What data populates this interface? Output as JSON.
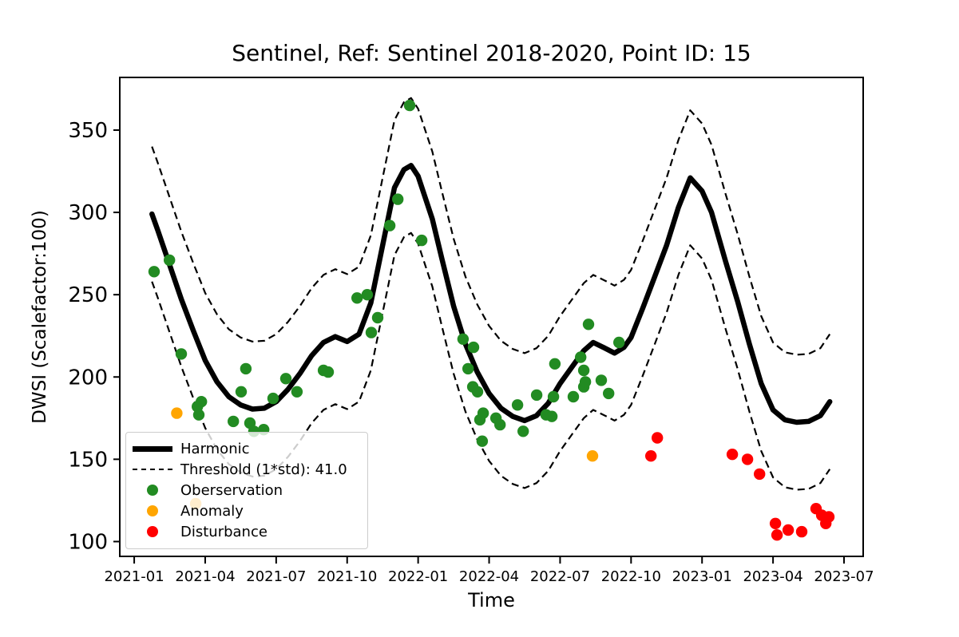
{
  "title": "Sentinel, Ref: Sentinel 2018-2020, Point ID: 15",
  "axes": {
    "xlabel": "Time",
    "ylabel": "DWSI (Scalefactor:100)",
    "x_tick_labels": [
      "2021-01",
      "2021-04",
      "2021-07",
      "2021-10",
      "2022-01",
      "2022-04",
      "2022-07",
      "2022-10",
      "2023-01",
      "2023-04",
      "2023-07"
    ],
    "y_tick_labels": [
      "100",
      "150",
      "200",
      "250",
      "300",
      "350"
    ]
  },
  "legend": {
    "items": [
      {
        "label": "Harmonic",
        "marker": "thick-line"
      },
      {
        "label": "Threshold (1*std): 41.0",
        "marker": "dashed-line"
      },
      {
        "label": "Oberservation",
        "marker": "green-dot"
      },
      {
        "label": "Anomaly",
        "marker": "orange-dot"
      },
      {
        "label": "Disturbance",
        "marker": "red-dot"
      }
    ]
  },
  "colors": {
    "harmonic": "#000000",
    "threshold": "#000000",
    "observation": "#228B22",
    "anomaly": "#FFA500",
    "disturbance": "#FF0000",
    "frame": "#000000",
    "legend_border": "#cccccc"
  },
  "chart_data": {
    "type": "line+scatter",
    "title": "Sentinel, Ref: Sentinel 2018-2020, Point ID: 15",
    "xlabel": "Time",
    "ylabel": "DWSI (Scalefactor:100)",
    "x_unit": "months_since_2021-01",
    "x_ticks_t": [
      0,
      3,
      6,
      9,
      12,
      15,
      18,
      21,
      24,
      27,
      30
    ],
    "x_tick_labels": [
      "2021-01",
      "2021-04",
      "2021-07",
      "2021-10",
      "2022-01",
      "2022-04",
      "2022-07",
      "2022-10",
      "2023-01",
      "2023-04",
      "2023-07"
    ],
    "y_ticks": [
      100,
      150,
      200,
      250,
      300,
      350
    ],
    "xlim_t": [
      -0.61,
      30.81
    ],
    "ylim": [
      91,
      382
    ],
    "grid": false,
    "legend_position": "lower-left",
    "threshold_std_label": 41.0,
    "harmonic": {
      "name": "Harmonic",
      "points": [
        [
          0.75,
          299
        ],
        [
          1,
          289
        ],
        [
          1.5,
          268
        ],
        [
          2,
          247
        ],
        [
          2.5,
          228
        ],
        [
          3,
          210
        ],
        [
          3.5,
          197
        ],
        [
          4,
          188
        ],
        [
          4.5,
          183
        ],
        [
          5,
          180.5
        ],
        [
          5.5,
          181
        ],
        [
          6,
          185
        ],
        [
          6.5,
          192.5
        ],
        [
          7,
          202
        ],
        [
          7.5,
          213
        ],
        [
          8,
          221
        ],
        [
          8.5,
          224.5
        ],
        [
          9,
          221.5
        ],
        [
          9.5,
          226
        ],
        [
          10,
          245
        ],
        [
          10.5,
          280
        ],
        [
          11,
          315
        ],
        [
          11.4,
          326
        ],
        [
          11.7,
          328.5
        ],
        [
          12,
          322
        ],
        [
          12.3,
          309
        ],
        [
          12.6,
          296
        ],
        [
          13,
          272
        ],
        [
          13.5,
          243
        ],
        [
          14,
          220
        ],
        [
          14.5,
          203
        ],
        [
          15,
          190
        ],
        [
          15.5,
          181
        ],
        [
          16,
          176
        ],
        [
          16.5,
          173.5
        ],
        [
          17,
          176.5
        ],
        [
          17.5,
          184
        ],
        [
          18,
          196
        ],
        [
          18.5,
          206
        ],
        [
          19,
          216
        ],
        [
          19.4,
          221
        ],
        [
          19.9,
          217.5
        ],
        [
          20.3,
          214.5
        ],
        [
          20.7,
          218
        ],
        [
          21,
          224
        ],
        [
          21.5,
          242
        ],
        [
          22,
          261
        ],
        [
          22.5,
          280
        ],
        [
          23,
          303
        ],
        [
          23.5,
          321
        ],
        [
          24,
          313
        ],
        [
          24.4,
          300
        ],
        [
          25,
          270
        ],
        [
          25.5,
          246
        ],
        [
          26,
          220
        ],
        [
          26.5,
          196
        ],
        [
          27,
          180
        ],
        [
          27.5,
          174
        ],
        [
          28,
          172.5
        ],
        [
          28.5,
          173
        ],
        [
          29,
          176.5
        ],
        [
          29.4,
          185
        ]
      ]
    },
    "threshold_offset": 41,
    "series": [
      {
        "name": "Oberservation",
        "color": "#228B22",
        "points": [
          [
            0.84,
            264
          ],
          [
            1.49,
            271
          ],
          [
            1.99,
            214
          ],
          [
            2.67,
            182
          ],
          [
            2.73,
            177
          ],
          [
            2.84,
            185
          ],
          [
            4.19,
            173
          ],
          [
            4.52,
            191
          ],
          [
            4.72,
            205
          ],
          [
            4.89,
            172
          ],
          [
            5.06,
            167
          ],
          [
            5.47,
            168
          ],
          [
            5.87,
            187
          ],
          [
            6.41,
            199
          ],
          [
            6.88,
            191
          ],
          [
            8.0,
            204
          ],
          [
            8.2,
            203
          ],
          [
            9.42,
            248
          ],
          [
            9.85,
            250
          ],
          [
            10.02,
            227
          ],
          [
            10.29,
            236
          ],
          [
            10.8,
            292
          ],
          [
            11.14,
            308
          ],
          [
            11.64,
            365
          ],
          [
            12.15,
            283
          ],
          [
            13.9,
            223
          ],
          [
            14.11,
            205
          ],
          [
            14.31,
            194
          ],
          [
            14.34,
            218
          ],
          [
            14.51,
            191
          ],
          [
            14.61,
            174
          ],
          [
            14.71,
            161
          ],
          [
            14.75,
            178
          ],
          [
            15.29,
            175
          ],
          [
            15.46,
            171
          ],
          [
            16.2,
            183
          ],
          [
            16.44,
            167
          ],
          [
            17.01,
            189
          ],
          [
            17.41,
            177
          ],
          [
            17.65,
            176
          ],
          [
            17.72,
            188
          ],
          [
            17.78,
            208
          ],
          [
            18.56,
            188
          ],
          [
            18.87,
            212
          ],
          [
            19.0,
            204
          ],
          [
            19.0,
            194
          ],
          [
            19.07,
            197
          ],
          [
            19.2,
            232
          ],
          [
            19.74,
            198
          ],
          [
            20.05,
            190
          ],
          [
            20.49,
            221
          ]
        ]
      },
      {
        "name": "Anomaly",
        "color": "#FFA500",
        "points": [
          [
            1.8,
            178
          ],
          [
            2.6,
            123
          ],
          [
            19.37,
            152
          ]
        ]
      },
      {
        "name": "Disturbance",
        "color": "#FF0000",
        "points": [
          [
            21.84,
            152
          ],
          [
            22.11,
            163
          ],
          [
            25.28,
            153
          ],
          [
            25.92,
            150
          ],
          [
            26.43,
            141
          ],
          [
            27.1,
            111
          ],
          [
            27.17,
            104
          ],
          [
            27.64,
            107
          ],
          [
            28.21,
            106
          ],
          [
            28.82,
            120
          ],
          [
            29.06,
            116
          ],
          [
            29.23,
            111
          ],
          [
            29.36,
            115
          ]
        ]
      }
    ]
  }
}
